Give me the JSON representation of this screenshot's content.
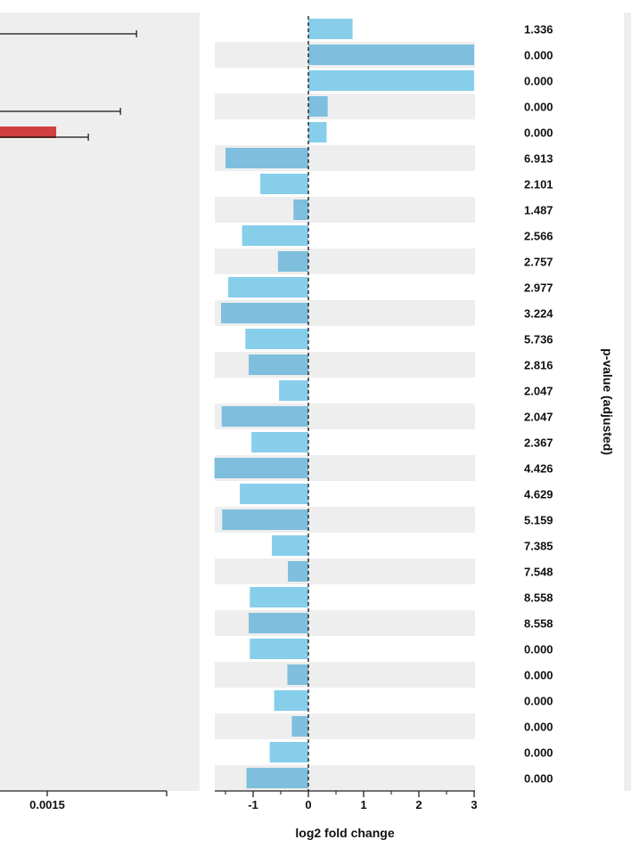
{
  "colors": {
    "panel_bg": "#eeeeee",
    "bar_light": "#87ceeb",
    "bar_dark": "#7fbfdd",
    "bar_red": "#d04040",
    "axis": "#222222"
  },
  "chart_data": [
    {
      "type": "bar",
      "orientation": "horizontal",
      "description_visible": "partially visible proportion panel (cropped at left)",
      "x_tick_labels": [
        "0.0015"
      ],
      "series": [
        {
          "color_key": "bar_red",
          "bars": [
            {
              "row": 4,
              "value": 0.00155,
              "error_upper": 0.0024
            }
          ]
        }
      ],
      "error_bars_only": [
        {
          "row": 0,
          "upper": 0.00205
        },
        {
          "row": 3,
          "upper": 0.00195
        },
        {
          "row": 4,
          "upper": 0.00175
        }
      ],
      "x_range_visible": [
        0.0012,
        0.0028
      ]
    },
    {
      "type": "bar",
      "orientation": "horizontal",
      "xlabel": "log2 fold change",
      "xlim": [
        -1.7,
        3.0
      ],
      "x_ticks": [
        -1,
        0,
        1,
        2,
        3
      ],
      "x_minor_ticks": [
        -1.5,
        -0.5,
        0.5,
        1.5,
        2.5
      ],
      "values": [
        0.8,
        3.0,
        3.0,
        0.35,
        0.33,
        -1.5,
        -0.87,
        -0.27,
        -1.2,
        -0.55,
        -1.45,
        -1.58,
        -1.14,
        -1.08,
        -0.53,
        -1.57,
        -1.03,
        -1.7,
        -1.24,
        -1.56,
        -0.66,
        -0.37,
        -1.06,
        -1.08,
        -1.06,
        -0.38,
        -0.62,
        -0.3,
        -0.7,
        -1.12
      ],
      "p_values": [
        "1.336",
        "0.000",
        "0.000",
        "0.000",
        "0.000",
        "6.913",
        "2.101",
        "1.487",
        "2.566",
        "2.757",
        "2.977",
        "3.224",
        "5.736",
        "2.816",
        "2.047",
        "2.047",
        "2.367",
        "4.426",
        "4.629",
        "5.159",
        "7.385",
        "7.548",
        "8.558",
        "8.558",
        "0.000",
        "0.000",
        "0.000",
        "0.000",
        "0.000",
        "0.000"
      ],
      "p_value_label": "p-value (adjusted)"
    }
  ]
}
